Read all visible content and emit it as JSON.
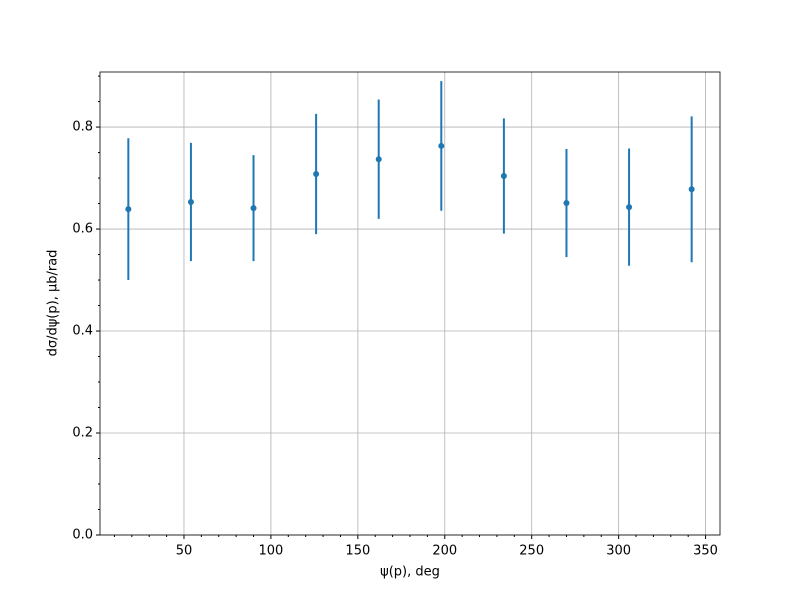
{
  "chart_data": {
    "type": "errorbar",
    "xlabel": "ψ(p), deg",
    "ylabel": "dσ/dψ(p), μb/rad",
    "x": [
      18,
      54,
      90,
      126,
      162,
      198,
      234,
      270,
      306,
      342
    ],
    "values": [
      0.639,
      0.653,
      0.641,
      0.708,
      0.737,
      0.763,
      0.704,
      0.651,
      0.643,
      0.678
    ],
    "errors": [
      0.139,
      0.116,
      0.104,
      0.118,
      0.117,
      0.127,
      0.113,
      0.106,
      0.115,
      0.143
    ],
    "color": "#1f77b4",
    "xlim": [
      1.7,
      358.3
    ],
    "ylim": [
      0,
      0.908
    ],
    "xticks": [
      50,
      100,
      150,
      200,
      250,
      300,
      350
    ],
    "yticks": [
      {
        "value": 0,
        "label": "0.0"
      },
      {
        "value": 0.2,
        "label": "0.2"
      },
      {
        "value": 0.4,
        "label": "0.4"
      },
      {
        "value": 0.6,
        "label": "0.6"
      },
      {
        "value": 0.8,
        "label": "0.8"
      }
    ],
    "xminorticks": [
      10,
      20,
      30,
      40,
      60,
      70,
      80,
      90,
      110,
      120,
      130,
      140,
      160,
      170,
      180,
      190,
      210,
      220,
      230,
      240,
      260,
      270,
      280,
      290,
      310,
      320,
      330,
      340
    ],
    "yminorticks": [
      0.05,
      0.1,
      0.15,
      0.25,
      0.3,
      0.35,
      0.45,
      0.5,
      0.55,
      0.65,
      0.7,
      0.75,
      0.85,
      0.9
    ],
    "grid": true
  }
}
